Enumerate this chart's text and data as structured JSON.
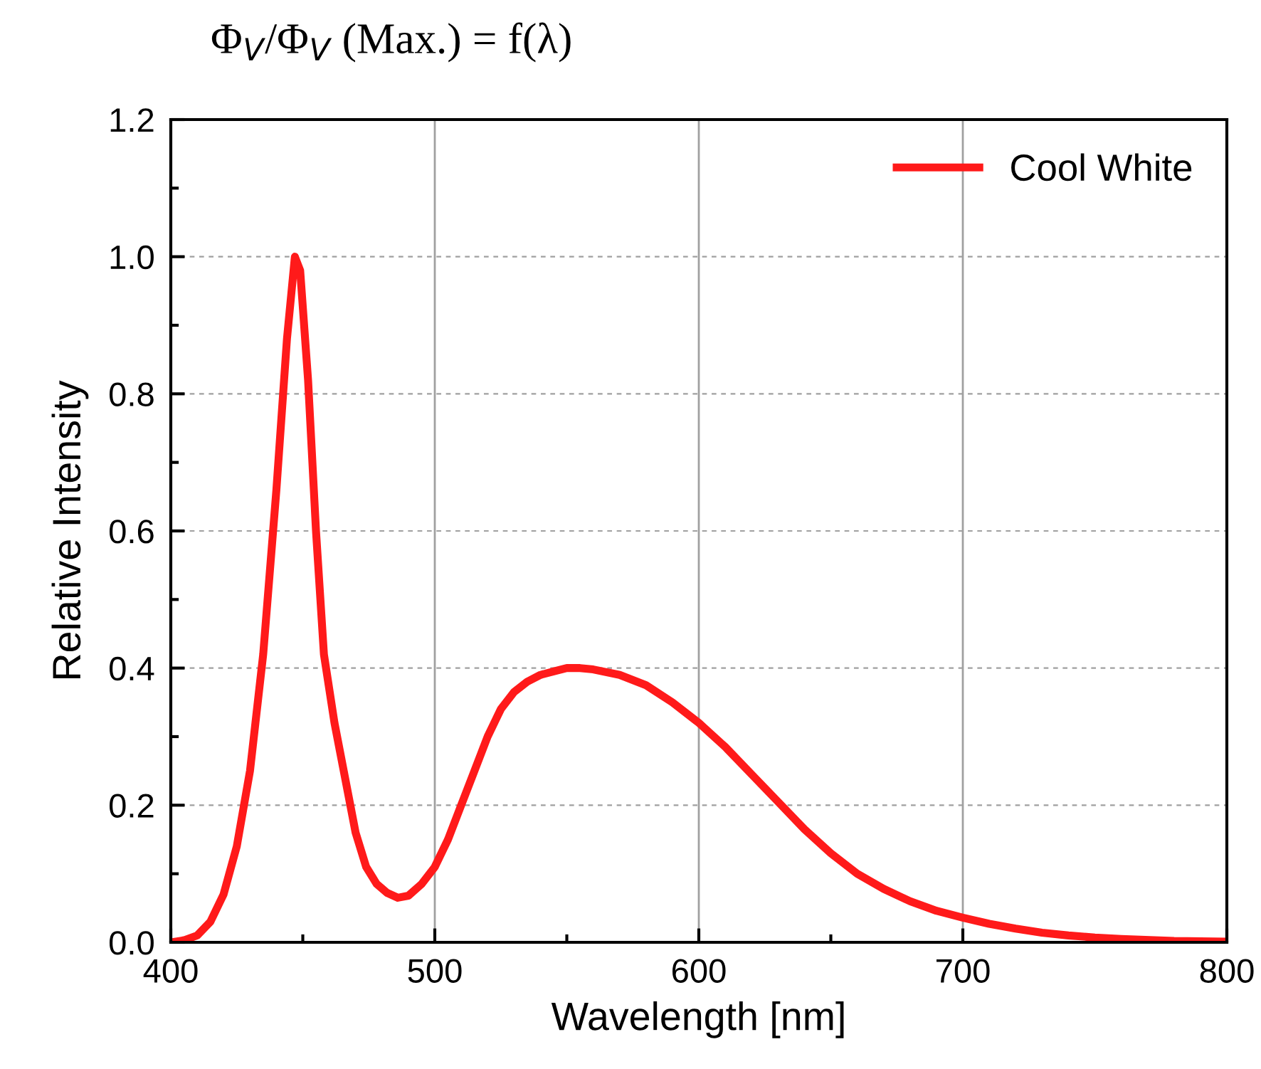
{
  "chart_data": {
    "type": "line",
    "title": "Φ$_{V}$/Φ$_{V}$ (Max.) = f(λ)",
    "xlabel": "Wavelength [nm]",
    "ylabel": "Relative Intensity",
    "xlim": [
      400,
      800
    ],
    "ylim": [
      0,
      1.2
    ],
    "xticks": [
      400,
      {
        "value": 450,
        "label": null
      },
      500,
      {
        "value": 550,
        "label": null
      },
      600,
      {
        "value": 650,
        "label": null
      },
      700,
      {
        "value": 750,
        "label": null
      },
      800
    ],
    "yticks": [
      {
        "value": 0,
        "label": "0.0"
      },
      {
        "value": 0.1,
        "label": null
      },
      {
        "value": 0.2,
        "label": "0.2"
      },
      {
        "value": 0.3,
        "label": null
      },
      {
        "value": 0.4,
        "label": "0.4"
      },
      {
        "value": 0.5,
        "label": null
      },
      {
        "value": 0.6,
        "label": "0.6"
      },
      {
        "value": 0.7,
        "label": null
      },
      {
        "value": 0.8,
        "label": "0.8"
      },
      {
        "value": 0.9,
        "label": null
      },
      {
        "value": 1.0,
        "label": "1.0"
      },
      {
        "value": 1.1,
        "label": null
      },
      {
        "value": 1.2,
        "label": "1.2"
      }
    ],
    "grid": true,
    "legend": "top right",
    "marker": "none",
    "line_style": "solid",
    "x": [
      400,
      405,
      410,
      415,
      420,
      425,
      430,
      435,
      440,
      444,
      447,
      449,
      452,
      455,
      458,
      462,
      466,
      470,
      474,
      478,
      482,
      486,
      490,
      495,
      500,
      505,
      510,
      515,
      520,
      525,
      530,
      535,
      540,
      545,
      550,
      555,
      560,
      570,
      580,
      590,
      600,
      610,
      620,
      630,
      640,
      650,
      660,
      670,
      680,
      690,
      700,
      710,
      720,
      730,
      740,
      750,
      760,
      780,
      800
    ],
    "series": [
      {
        "name": "Cool White",
        "color": "#ff1a1a",
        "values": [
          0,
          0.003,
          0.01,
          0.03,
          0.07,
          0.14,
          0.25,
          0.42,
          0.66,
          0.88,
          1.0,
          0.98,
          0.82,
          0.6,
          0.42,
          0.32,
          0.24,
          0.16,
          0.11,
          0.085,
          0.072,
          0.065,
          0.068,
          0.085,
          0.11,
          0.15,
          0.2,
          0.25,
          0.3,
          0.34,
          0.365,
          0.38,
          0.39,
          0.395,
          0.4,
          0.4,
          0.398,
          0.39,
          0.375,
          0.35,
          0.32,
          0.285,
          0.245,
          0.205,
          0.165,
          0.13,
          0.1,
          0.078,
          0.06,
          0.046,
          0.036,
          0.027,
          0.02,
          0.014,
          0.01,
          0.007,
          0.005,
          0.002,
          0.001
        ]
      }
    ]
  }
}
